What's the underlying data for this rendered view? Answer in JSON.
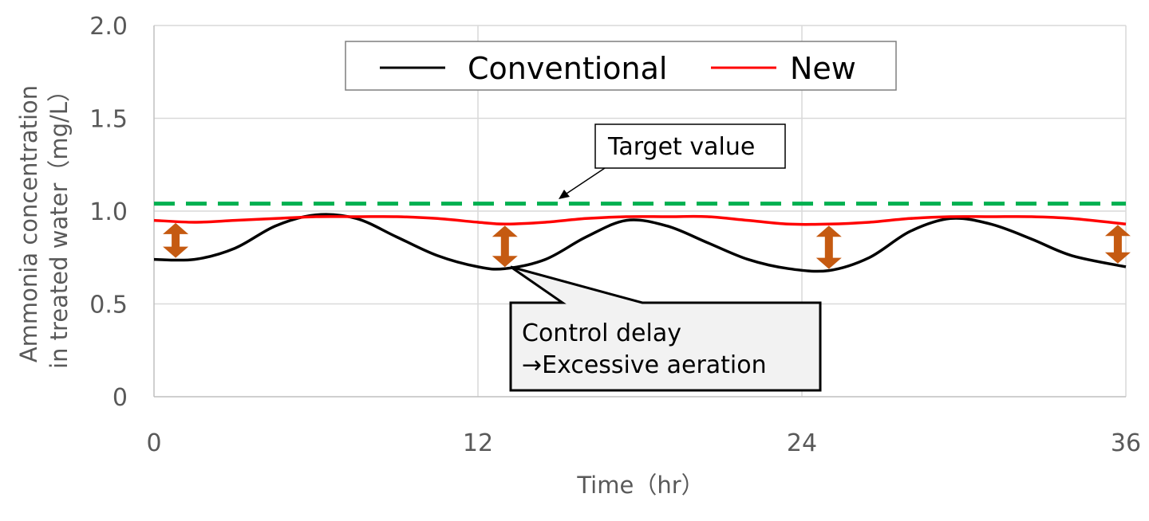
{
  "chart_data": {
    "type": "line",
    "xlabel": "Time（hr）",
    "ylabel_lines": [
      "Ammonia concentration",
      "in treated water（mg/L）"
    ],
    "xlim": [
      0,
      36
    ],
    "ylim": [
      0,
      2.0
    ],
    "x_ticks": [
      0,
      12,
      24,
      36
    ],
    "x_tick_labels": [
      "0",
      "12",
      "24",
      "36"
    ],
    "y_ticks": [
      0,
      0.5,
      1.0,
      1.5,
      2.0
    ],
    "y_tick_labels": [
      "0",
      "0.5",
      "1.0",
      "1.5",
      "2.0"
    ],
    "grid": true,
    "legend_position": "top-center",
    "series": [
      {
        "name": "Conventional",
        "color": "#000000",
        "x": [
          0,
          1.5,
          3,
          4.5,
          6,
          7.5,
          9,
          10.5,
          12,
          13,
          14.5,
          16,
          17.5,
          19,
          20.5,
          22,
          23.5,
          25,
          26.5,
          28,
          29.5,
          31,
          32.5,
          34,
          36
        ],
        "y": [
          0.74,
          0.74,
          0.8,
          0.92,
          0.98,
          0.96,
          0.86,
          0.76,
          0.7,
          0.69,
          0.74,
          0.86,
          0.95,
          0.92,
          0.83,
          0.74,
          0.69,
          0.68,
          0.75,
          0.89,
          0.96,
          0.93,
          0.85,
          0.76,
          0.7
        ]
      },
      {
        "name": "New",
        "color": "#ff0000",
        "x": [
          0,
          1.5,
          3,
          4.5,
          6,
          7.5,
          9,
          10.5,
          12,
          13,
          14.5,
          16,
          17.5,
          19,
          20.5,
          22,
          23.5,
          25,
          26.5,
          28,
          29.5,
          31,
          32.5,
          34,
          36
        ],
        "y": [
          0.95,
          0.94,
          0.95,
          0.96,
          0.97,
          0.97,
          0.97,
          0.96,
          0.94,
          0.93,
          0.94,
          0.96,
          0.97,
          0.97,
          0.97,
          0.95,
          0.93,
          0.93,
          0.94,
          0.96,
          0.97,
          0.97,
          0.97,
          0.96,
          0.93
        ]
      }
    ],
    "target": {
      "value": 1.04,
      "color": "#00b050",
      "label": "Target value"
    },
    "gap_arrows": {
      "color": "#c55a11",
      "x": [
        0.8,
        13,
        25,
        35.7
      ]
    },
    "callout": {
      "anchor_x": 13,
      "anchor_y": 0.69,
      "lines": [
        "Control delay",
        "→Excessive aeration"
      ]
    }
  }
}
